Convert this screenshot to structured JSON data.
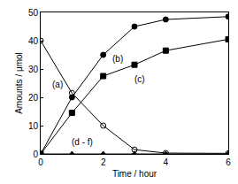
{
  "chart_data": {
    "type": "line",
    "x_label": "Time / hour",
    "y_label": "Amounts / μmol",
    "xlim": [
      0,
      6
    ],
    "xticks": [
      0,
      2,
      4,
      6
    ],
    "ylim": [
      0,
      50
    ],
    "yticks": [
      0,
      10,
      20,
      30,
      40,
      50
    ],
    "grid": false,
    "series": [
      {
        "name": "(a)",
        "color": "#000000",
        "marker": "open circle",
        "x": [
          0,
          1,
          2,
          3,
          4,
          6
        ],
        "values": [
          40,
          21.5,
          10,
          1.5,
          0.3,
          0.2
        ]
      },
      {
        "name": "(b)",
        "color": "#000000",
        "marker": "circle",
        "x": [
          0,
          1,
          2,
          3,
          4,
          6
        ],
        "values": [
          0,
          20,
          35,
          45,
          47.5,
          48.5
        ]
      },
      {
        "name": "(c)",
        "color": "#000000",
        "marker": "square",
        "x": [
          0,
          1,
          2,
          3,
          4,
          6
        ],
        "values": [
          0,
          14.5,
          27.5,
          31.5,
          36.5,
          40.5
        ]
      },
      {
        "name": "(d - f)",
        "color": "#000000",
        "marker": "triangle",
        "x": [
          0,
          1,
          2,
          3,
          4,
          6
        ],
        "values": [
          0,
          0,
          0,
          0,
          0,
          0
        ]
      }
    ]
  }
}
